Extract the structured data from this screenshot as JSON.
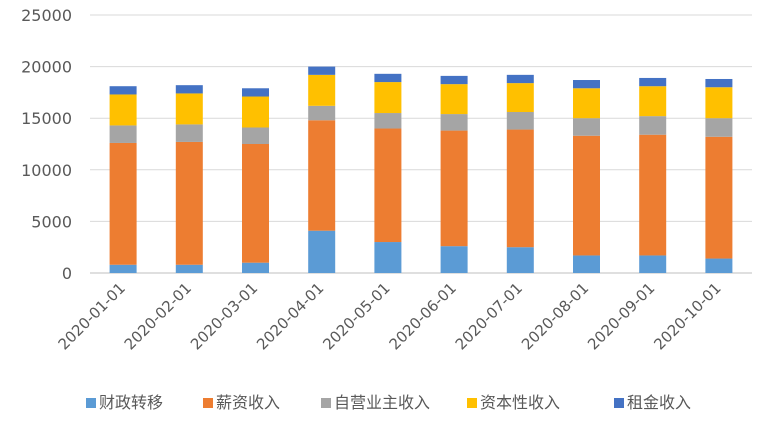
{
  "chart_data": {
    "type": "bar",
    "stacked": true,
    "categories": [
      "2020-01-01",
      "2020-02-01",
      "2020-03-01",
      "2020-04-01",
      "2020-05-01",
      "2020-06-01",
      "2020-07-01",
      "2020-08-01",
      "2020-09-01",
      "2020-10-01"
    ],
    "series": [
      {
        "name": "财政转移",
        "color": "#5B9BD5",
        "values": [
          800,
          800,
          1000,
          4100,
          3000,
          2600,
          2500,
          1700,
          1700,
          1400
        ]
      },
      {
        "name": "薪资收入",
        "color": "#ED7D31",
        "values": [
          11800,
          11900,
          11500,
          10700,
          11000,
          11200,
          11400,
          11600,
          11700,
          11800
        ]
      },
      {
        "name": "自营业主收入",
        "color": "#A5A5A5",
        "values": [
          1700,
          1700,
          1600,
          1400,
          1500,
          1600,
          1700,
          1700,
          1800,
          1800
        ]
      },
      {
        "name": "资本性收入",
        "color": "#FFC000",
        "values": [
          3000,
          3000,
          3000,
          3000,
          3000,
          2900,
          2800,
          2900,
          2900,
          3000
        ]
      },
      {
        "name": "租金收入",
        "color": "#4472C4",
        "values": [
          800,
          800,
          800,
          800,
          800,
          800,
          800,
          800,
          800,
          800
        ]
      }
    ],
    "ylim": [
      0,
      25000
    ],
    "yticks": [
      0,
      5000,
      10000,
      15000,
      20000,
      25000
    ],
    "grid": true,
    "legend_position": "bottom"
  }
}
